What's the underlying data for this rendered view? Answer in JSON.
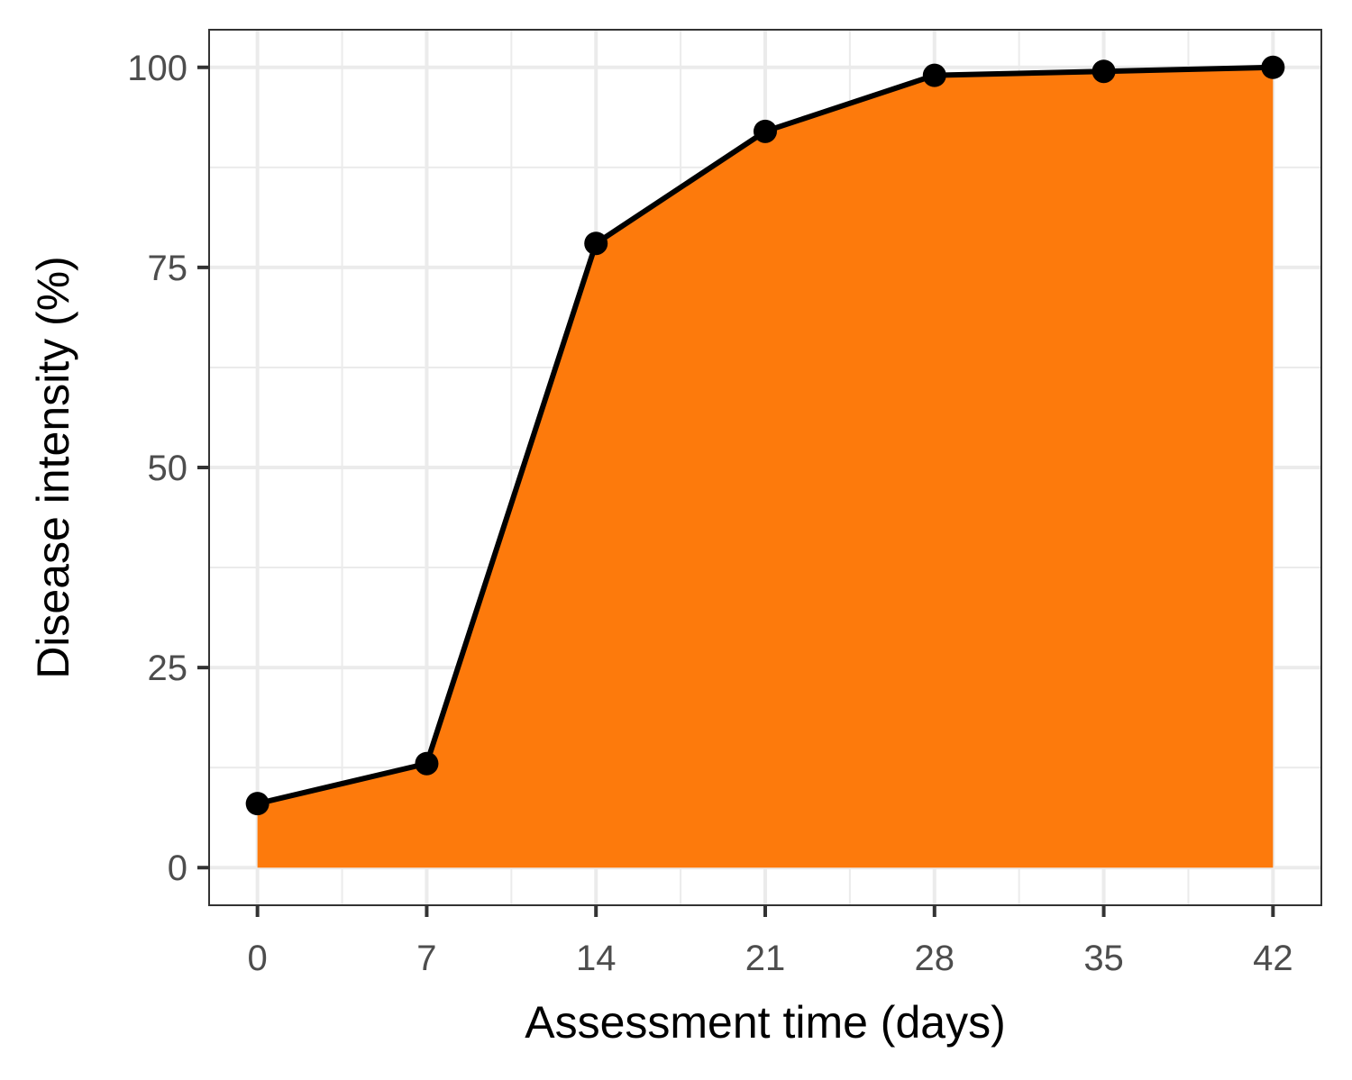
{
  "chart_data": {
    "type": "area",
    "title": "",
    "xlabel": "Assessment time (days)",
    "ylabel": "Disease intensity (%)",
    "x": [
      0,
      7,
      14,
      21,
      28,
      35,
      42
    ],
    "series": [
      {
        "values": [
          8,
          13,
          78,
          92,
          99,
          99.5,
          100
        ]
      }
    ],
    "xlim": [
      -2.0,
      44.0
    ],
    "ylim": [
      -4.7,
      104.7
    ],
    "x_ticks": [
      0,
      7,
      14,
      21,
      28,
      35,
      42
    ],
    "x_tick_labels": [
      "0",
      "7",
      "14",
      "21",
      "28",
      "35",
      "42"
    ],
    "y_ticks": [
      0,
      25,
      50,
      75,
      100
    ],
    "y_tick_labels": [
      "0",
      "25",
      "50",
      "75",
      "100"
    ],
    "grid": true,
    "legend": "none",
    "colors": {
      "fill": "#fd7a0c",
      "line": "#000000",
      "points": "#000000"
    }
  }
}
